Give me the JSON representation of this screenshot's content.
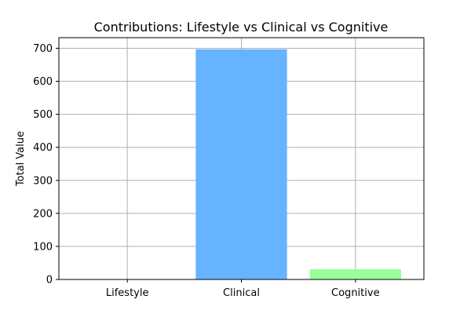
{
  "chart_data": {
    "type": "bar",
    "title": "Contributions: Lifestyle vs Clinical vs Cognitive",
    "xlabel": "",
    "ylabel": "Total Value",
    "categories": [
      "Lifestyle",
      "Clinical",
      "Cognitive"
    ],
    "values": [
      0,
      697,
      31
    ],
    "colors": [
      "#ff9999",
      "#66b3ff",
      "#99ff99"
    ],
    "ylim": [
      0,
      732
    ],
    "yticks": [
      0,
      100,
      200,
      300,
      400,
      500,
      600,
      700
    ],
    "grid": true,
    "legend": "none"
  }
}
